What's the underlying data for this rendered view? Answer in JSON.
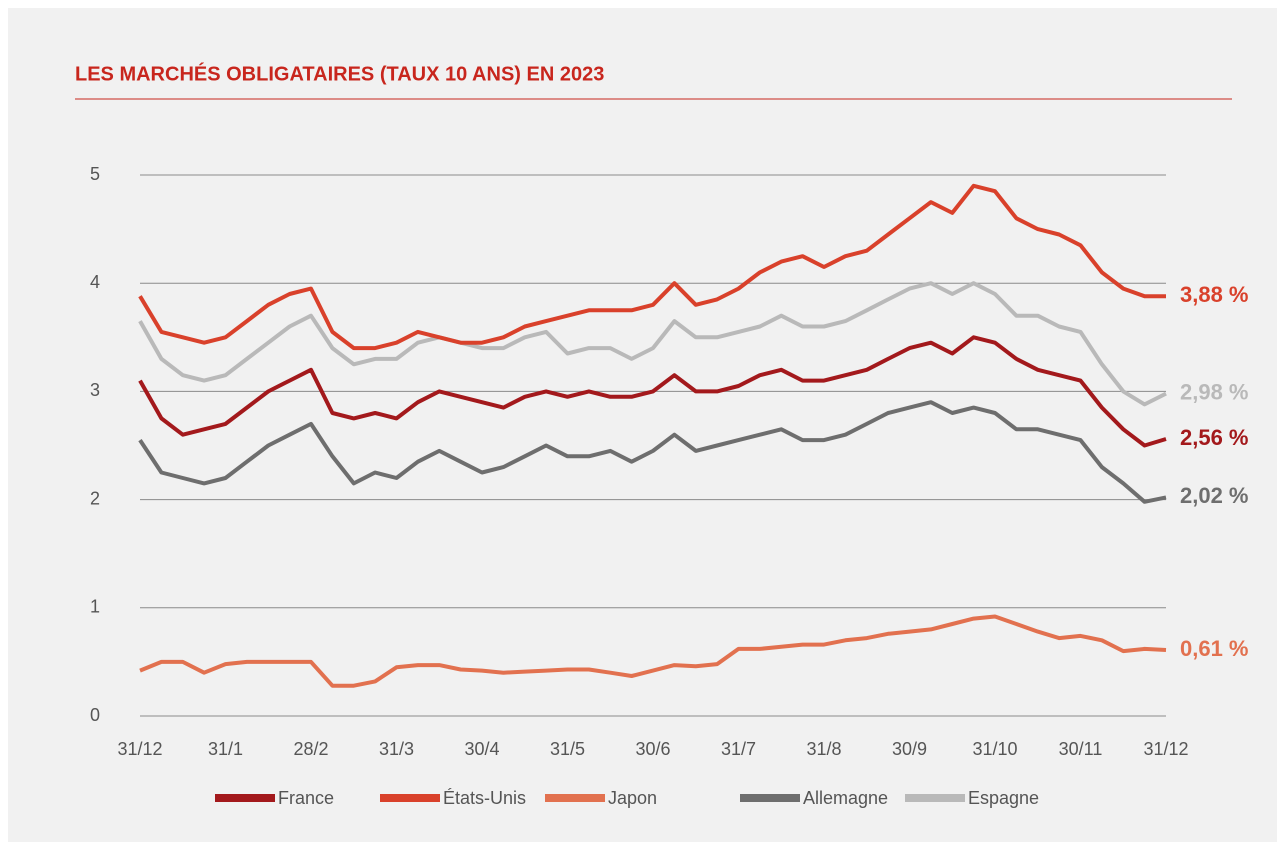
{
  "chart_data": {
    "type": "line",
    "title": "LES MARCHÉS OBLIGATAIRES (TAUX 10 ANS) EN 2023",
    "categories": [
      "31/12",
      null,
      null,
      null,
      "31/1",
      null,
      null,
      null,
      "28/2",
      null,
      null,
      null,
      "31/3",
      null,
      null,
      null,
      "30/4",
      null,
      null,
      null,
      "31/5",
      null,
      null,
      null,
      "30/6",
      null,
      null,
      null,
      "31/7",
      null,
      null,
      null,
      "31/8",
      null,
      null,
      null,
      "30/9",
      null,
      null,
      null,
      "31/10",
      null,
      null,
      null,
      "30/11",
      null,
      null,
      null,
      "31/12"
    ],
    "ylim": [
      0,
      5
    ],
    "yticks": [
      0,
      1,
      2,
      3,
      4,
      5
    ],
    "grid": true,
    "legend": "bottom",
    "series": [
      {
        "name": "France",
        "color": "#a3191c",
        "end_label": "2,56 %",
        "values": [
          3.1,
          2.75,
          2.6,
          2.65,
          2.7,
          2.85,
          3.0,
          3.1,
          3.2,
          2.8,
          2.75,
          2.8,
          2.75,
          2.9,
          3.0,
          2.95,
          2.9,
          2.85,
          2.95,
          3.0,
          2.95,
          3.0,
          2.95,
          2.95,
          3.0,
          3.15,
          3.0,
          3.0,
          3.05,
          3.15,
          3.2,
          3.1,
          3.1,
          3.15,
          3.2,
          3.3,
          3.4,
          3.45,
          3.35,
          3.5,
          3.45,
          3.3,
          3.2,
          3.15,
          3.1,
          2.85,
          2.65,
          2.5,
          2.56
        ]
      },
      {
        "name": "États-Unis",
        "color": "#d9412b",
        "end_label": "3,88 %",
        "values": [
          3.88,
          3.55,
          3.5,
          3.45,
          3.5,
          3.65,
          3.8,
          3.9,
          3.95,
          3.55,
          3.4,
          3.4,
          3.45,
          3.55,
          3.5,
          3.45,
          3.45,
          3.5,
          3.6,
          3.65,
          3.7,
          3.75,
          3.75,
          3.75,
          3.8,
          4.0,
          3.8,
          3.85,
          3.95,
          4.1,
          4.2,
          4.25,
          4.15,
          4.25,
          4.3,
          4.45,
          4.6,
          4.75,
          4.65,
          4.9,
          4.85,
          4.6,
          4.5,
          4.45,
          4.35,
          4.1,
          3.95,
          3.88,
          3.88
        ]
      },
      {
        "name": "Japon",
        "color": "#e2714f",
        "end_label": "0,61 %",
        "values": [
          0.42,
          0.5,
          0.5,
          0.4,
          0.48,
          0.5,
          0.5,
          0.5,
          0.5,
          0.28,
          0.28,
          0.32,
          0.45,
          0.47,
          0.47,
          0.43,
          0.42,
          0.4,
          0.41,
          0.42,
          0.43,
          0.43,
          0.4,
          0.37,
          0.42,
          0.47,
          0.46,
          0.48,
          0.62,
          0.62,
          0.64,
          0.66,
          0.66,
          0.7,
          0.72,
          0.76,
          0.78,
          0.8,
          0.85,
          0.9,
          0.92,
          0.85,
          0.78,
          0.72,
          0.74,
          0.7,
          0.6,
          0.62,
          0.61
        ]
      },
      {
        "name": "Allemagne",
        "color": "#6e6e6e",
        "end_label": "2,02 %",
        "values": [
          2.55,
          2.25,
          2.2,
          2.15,
          2.2,
          2.35,
          2.5,
          2.6,
          2.7,
          2.4,
          2.15,
          2.25,
          2.2,
          2.35,
          2.45,
          2.35,
          2.25,
          2.3,
          2.4,
          2.5,
          2.4,
          2.4,
          2.45,
          2.35,
          2.45,
          2.6,
          2.45,
          2.5,
          2.55,
          2.6,
          2.65,
          2.55,
          2.55,
          2.6,
          2.7,
          2.8,
          2.85,
          2.9,
          2.8,
          2.85,
          2.8,
          2.65,
          2.65,
          2.6,
          2.55,
          2.3,
          2.15,
          1.98,
          2.02
        ]
      },
      {
        "name": "Espagne",
        "color": "#b9b9b9",
        "end_label": "2,98 %",
        "values": [
          3.65,
          3.3,
          3.15,
          3.1,
          3.15,
          3.3,
          3.45,
          3.6,
          3.7,
          3.4,
          3.25,
          3.3,
          3.3,
          3.45,
          3.5,
          3.45,
          3.4,
          3.4,
          3.5,
          3.55,
          3.35,
          3.4,
          3.4,
          3.3,
          3.4,
          3.65,
          3.5,
          3.5,
          3.55,
          3.6,
          3.7,
          3.6,
          3.6,
          3.65,
          3.75,
          3.85,
          3.95,
          4.0,
          3.9,
          4.0,
          3.9,
          3.7,
          3.7,
          3.6,
          3.55,
          3.25,
          3.0,
          2.88,
          2.98
        ]
      }
    ]
  }
}
